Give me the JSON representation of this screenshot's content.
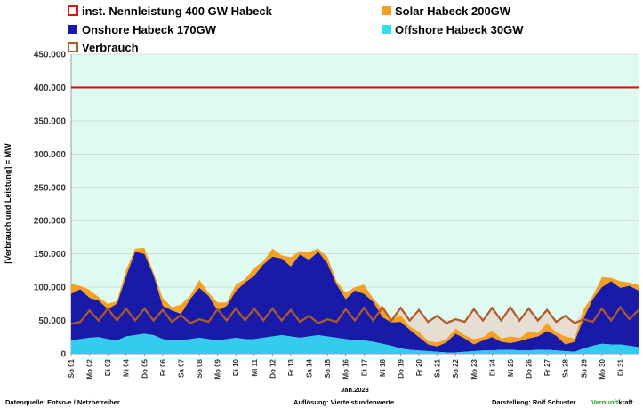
{
  "chart_data": {
    "type": "area",
    "title": "",
    "ylabel": "[Verbrauch und Leistung] =  MW",
    "xlabel": "Jan.2023",
    "ylim": [
      0,
      450000
    ],
    "yticks": [
      "0",
      "50.000",
      "100.000",
      "150.000",
      "200.000",
      "250.000",
      "300.000",
      "350.000",
      "400.000",
      "450.000"
    ],
    "ytick_values": [
      0,
      50000,
      100000,
      150000,
      200000,
      250000,
      300000,
      350000,
      400000,
      450000
    ],
    "xticks": [
      "So 01",
      "Mo 02",
      "Di 03",
      "Mi 04",
      "Do 05",
      "Fr 06",
      "Sa 07",
      "So 08",
      "Mo 09",
      "Di 10",
      "Mi 11",
      "Do 12",
      "Fr 13",
      "Sa 14",
      "So 15",
      "Mo 16",
      "Di 17",
      "Mi 18",
      "Do 19",
      "Fr 20",
      "Sa 21",
      "So 22",
      "Mo 23",
      "Di 24",
      "Mi 25",
      "Do 26",
      "Fr 27",
      "Sa 28",
      "So 29",
      "Mo 30",
      "Di 31"
    ],
    "days": [
      1,
      1.5,
      2,
      2.5,
      3,
      3.5,
      4,
      4.5,
      5,
      5.5,
      6,
      6.5,
      7,
      7.5,
      8,
      8.5,
      9,
      9.5,
      10,
      10.5,
      11,
      11.5,
      12,
      12.5,
      13,
      13.5,
      14,
      14.5,
      15,
      15.5,
      16,
      16.5,
      17,
      17.5,
      18,
      18.5,
      19,
      19.5,
      20,
      20.5,
      21,
      21.5,
      22,
      22.5,
      23,
      23.5,
      24,
      24.5,
      25,
      25.5,
      26,
      26.5,
      27,
      27.5,
      28,
      28.5,
      29,
      29.5,
      30,
      30.5,
      31,
      31.5,
      32
    ],
    "series": [
      {
        "name": "inst. Nennleistung 400 GW Habeck",
        "color": "#e01010",
        "constant": 400000
      },
      {
        "name": "Offshore Habeck 30GW",
        "color": "#33ccee",
        "values": [
          20000,
          22000,
          24000,
          25000,
          22000,
          20000,
          26000,
          28000,
          30000,
          28000,
          22000,
          20000,
          20000,
          22000,
          24000,
          22000,
          20000,
          22000,
          24000,
          22000,
          22000,
          24000,
          26000,
          28000,
          26000,
          24000,
          26000,
          28000,
          26000,
          24000,
          22000,
          20000,
          20000,
          18000,
          15000,
          12000,
          8000,
          6000,
          5000,
          4000,
          3000,
          2000,
          2000,
          3000,
          4000,
          5000,
          5000,
          6000,
          6000,
          5000,
          5000,
          6000,
          6000,
          5000,
          4000,
          3000,
          8000,
          12000,
          15000,
          14000,
          14000,
          12000,
          10000
        ]
      },
      {
        "name": "Onshore Habeck 170GW",
        "color": "#1a1aa8",
        "values": [
          70000,
          75000,
          60000,
          55000,
          45000,
          55000,
          90000,
          125000,
          120000,
          90000,
          50000,
          45000,
          40000,
          60000,
          75000,
          65000,
          45000,
          50000,
          70000,
          85000,
          95000,
          110000,
          120000,
          115000,
          105000,
          125000,
          115000,
          125000,
          110000,
          80000,
          60000,
          75000,
          70000,
          60000,
          40000,
          35000,
          40000,
          30000,
          20000,
          10000,
          8000,
          15000,
          28000,
          20000,
          10000,
          15000,
          20000,
          12000,
          10000,
          14000,
          18000,
          20000,
          28000,
          22000,
          10000,
          15000,
          45000,
          70000,
          85000,
          95000,
          85000,
          90000,
          85000
        ]
      },
      {
        "name": "Solar Habeck 200GW",
        "color": "#f5a020",
        "values": [
          15000,
          5000,
          12000,
          5000,
          8000,
          4000,
          10000,
          5000,
          9000,
          4000,
          12000,
          5000,
          14000,
          5000,
          12000,
          5000,
          12000,
          5000,
          10000,
          5000,
          12000,
          5000,
          12000,
          5000,
          14000,
          5000,
          12000,
          5000,
          10000,
          5000,
          10000,
          5000,
          14000,
          5000,
          12000,
          5000,
          10000,
          5000,
          8000,
          5000,
          6000,
          5000,
          8000,
          5000,
          8000,
          5000,
          10000,
          5000,
          10000,
          5000,
          10000,
          5000,
          12000,
          5000,
          12000,
          5000,
          14000,
          5000,
          15000,
          5000,
          10000,
          5000,
          8000
        ]
      },
      {
        "name": "Verbrauch",
        "color": "#b05a28",
        "values": [
          45000,
          48000,
          65000,
          50000,
          68000,
          50000,
          68000,
          50000,
          68000,
          50000,
          66000,
          48000,
          58000,
          46000,
          52000,
          48000,
          67000,
          50000,
          68000,
          50000,
          68000,
          50000,
          68000,
          50000,
          66000,
          48000,
          57000,
          46000,
          52000,
          48000,
          67000,
          50000,
          69000,
          50000,
          70000,
          50000,
          69000,
          50000,
          66000,
          48000,
          57000,
          46000,
          52000,
          48000,
          67000,
          50000,
          69000,
          50000,
          70000,
          50000,
          68000,
          50000,
          66000,
          48000,
          57000,
          46000,
          52000,
          48000,
          68000,
          50000,
          70000,
          52000,
          66000
        ]
      }
    ]
  },
  "legend": [
    {
      "label": "inst. Nennleistung 400 GW Habeck",
      "kind": "outline",
      "color": "#e01010"
    },
    {
      "label": "Solar Habeck 200GW",
      "kind": "fill",
      "color": "#f5a020"
    },
    {
      "label": "Onshore Habeck 170GW",
      "kind": "fill",
      "color": "#1a1aa8"
    },
    {
      "label": "Offshore Habeck 30GW",
      "kind": "fill",
      "color": "#33ddee"
    },
    {
      "label": "Verbrauch",
      "kind": "outline",
      "color": "#b05a28"
    }
  ],
  "footer": {
    "source": "Datenquelle: Entso-e  / Netzbetreiber",
    "resolution": "Auflösung: Viertelstundenwerte",
    "author": "Darstellung:  Rolf Schuster",
    "brand_green": "Vernunft",
    "brand_black": "kraft"
  },
  "colors": {
    "plot_bg": "#dffaf1",
    "gap_fill": "#e6ddd3",
    "grid": "#c8c8c8",
    "brand_green": "#22aa22"
  }
}
